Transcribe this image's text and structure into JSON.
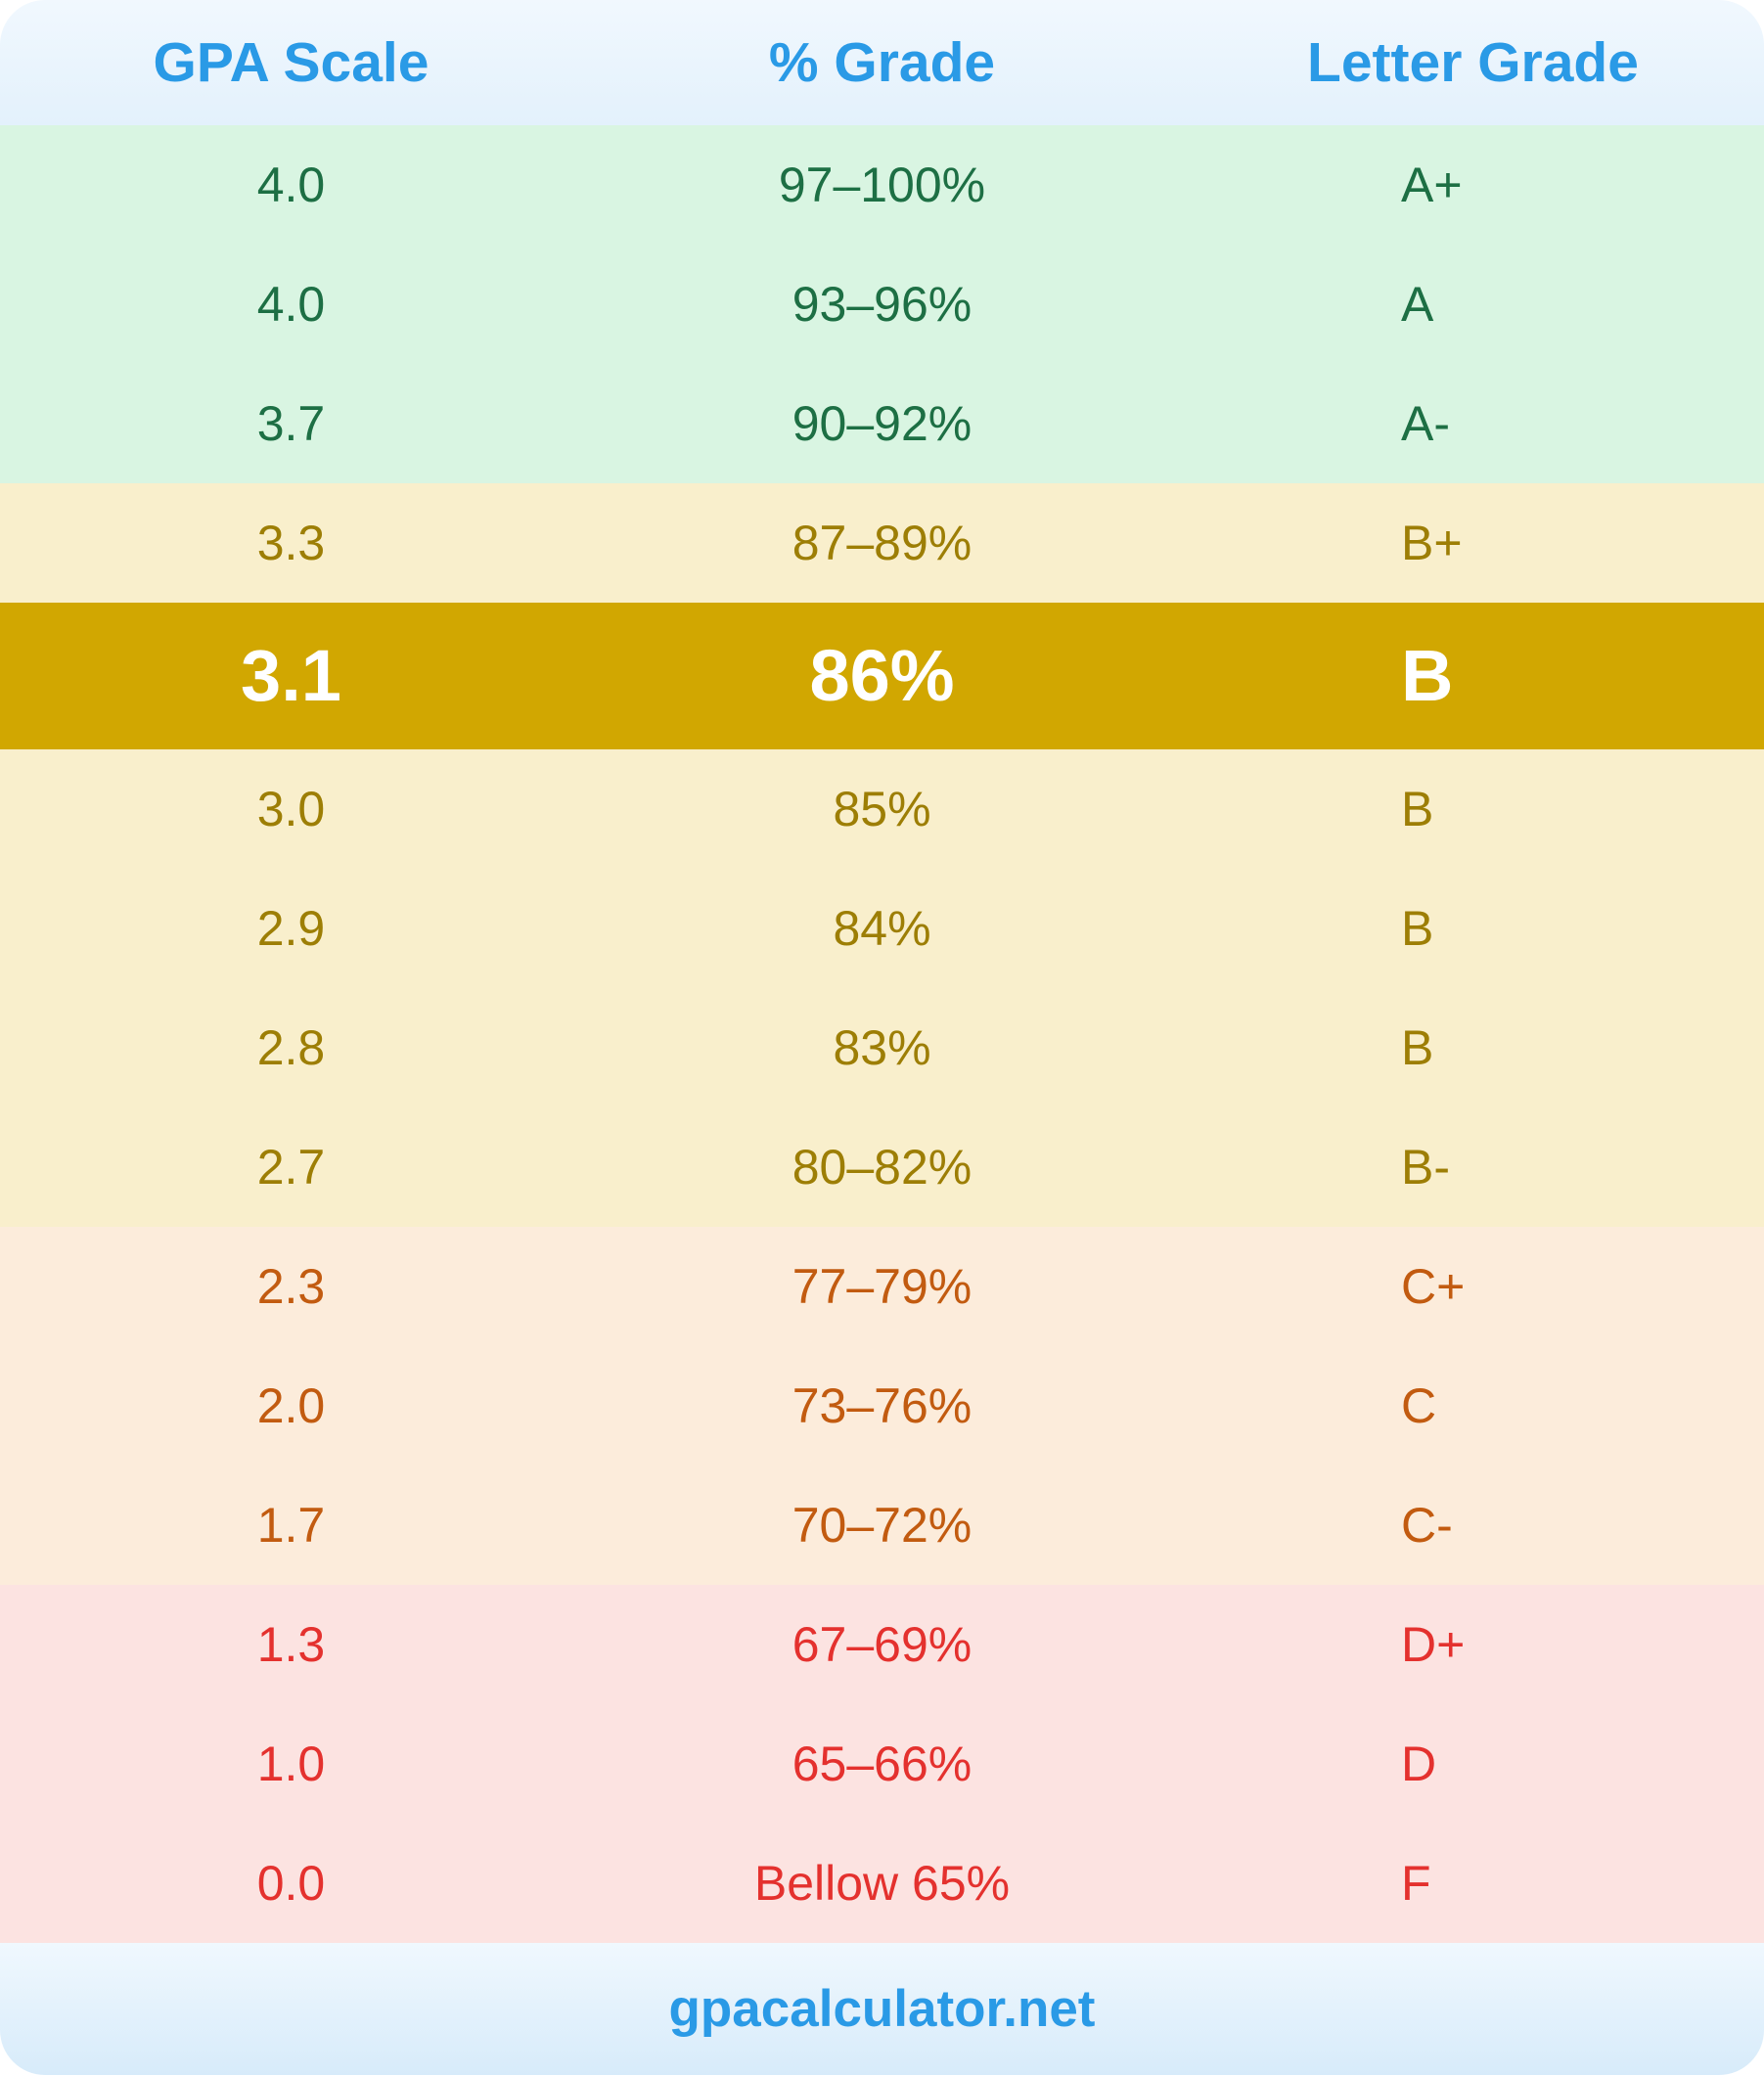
{
  "header": {
    "columns": [
      "GPA Scale",
      "% Grade",
      "Letter Grade"
    ]
  },
  "rows": [
    {
      "gpa": "4.0",
      "percent": "97–100%",
      "letter": "A+",
      "tier": "green",
      "highlight": false
    },
    {
      "gpa": "4.0",
      "percent": "93–96%",
      "letter": "A",
      "tier": "green",
      "highlight": false
    },
    {
      "gpa": "3.7",
      "percent": "90–92%",
      "letter": "A-",
      "tier": "green",
      "highlight": false
    },
    {
      "gpa": "3.3",
      "percent": "87–89%",
      "letter": "B+",
      "tier": "yellow",
      "highlight": false
    },
    {
      "gpa": "3.1",
      "percent": "86%",
      "letter": "B",
      "tier": "yellow",
      "highlight": true
    },
    {
      "gpa": "3.0",
      "percent": "85%",
      "letter": "B",
      "tier": "yellow",
      "highlight": false
    },
    {
      "gpa": "2.9",
      "percent": "84%",
      "letter": "B",
      "tier": "yellow",
      "highlight": false
    },
    {
      "gpa": "2.8",
      "percent": "83%",
      "letter": "B",
      "tier": "yellow",
      "highlight": false
    },
    {
      "gpa": "2.7",
      "percent": "80–82%",
      "letter": "B-",
      "tier": "yellow",
      "highlight": false
    },
    {
      "gpa": "2.3",
      "percent": "77–79%",
      "letter": "C+",
      "tier": "orange",
      "highlight": false
    },
    {
      "gpa": "2.0",
      "percent": "73–76%",
      "letter": "C",
      "tier": "orange",
      "highlight": false
    },
    {
      "gpa": "1.7",
      "percent": "70–72%",
      "letter": "C-",
      "tier": "orange",
      "highlight": false
    },
    {
      "gpa": "1.3",
      "percent": "67–69%",
      "letter": "D+",
      "tier": "red",
      "highlight": false
    },
    {
      "gpa": "1.0",
      "percent": "65–66%",
      "letter": "D",
      "tier": "red",
      "highlight": false
    },
    {
      "gpa": "0.0",
      "percent": "Bellow 65%",
      "letter": "F",
      "tier": "red",
      "highlight": false
    }
  ],
  "footer": {
    "site": "gpacalculator.net"
  },
  "colors": {
    "accent_blue": "#2a9ae6",
    "header_bg_top": "#f1f8fe",
    "header_bg_bottom": "#e3f1fc",
    "footer_bg_top": "#f0f8fe",
    "footer_bg_bottom": "#d7ebfa",
    "green_bg": "#d9f5e2",
    "green_text": "#1d6f44",
    "yellow_bg": "#f9efcc",
    "yellow_text": "#9d7e05",
    "highlight_bg": "#d1a701",
    "highlight_text": "#ffffff",
    "orange_bg": "#fcecdb",
    "orange_text": "#c25b10",
    "red_bg": "#fce3e1",
    "red_text": "#e4312e"
  },
  "chart_data": {
    "type": "table",
    "title": "GPA to percent to letter grade conversion table",
    "columns": [
      "GPA Scale",
      "% Grade",
      "Letter Grade"
    ],
    "rows": [
      [
        "4.0",
        "97–100%",
        "A+"
      ],
      [
        "4.0",
        "93–96%",
        "A"
      ],
      [
        "3.7",
        "90–92%",
        "A-"
      ],
      [
        "3.3",
        "87–89%",
        "B+"
      ],
      [
        "3.1",
        "86%",
        "B"
      ],
      [
        "3.0",
        "85%",
        "B"
      ],
      [
        "2.9",
        "84%",
        "B"
      ],
      [
        "2.8",
        "83%",
        "B"
      ],
      [
        "2.7",
        "80–82%",
        "B-"
      ],
      [
        "2.3",
        "77–79%",
        "C+"
      ],
      [
        "2.0",
        "73–76%",
        "C"
      ],
      [
        "1.7",
        "70–72%",
        "C-"
      ],
      [
        "1.3",
        "67–69%",
        "D+"
      ],
      [
        "1.0",
        "65–66%",
        "D"
      ],
      [
        "0.0",
        "Bellow 65%",
        "F"
      ]
    ],
    "highlighted_row": [
      "3.1",
      "86%",
      "B"
    ],
    "source_label": "gpacalculator.net"
  }
}
